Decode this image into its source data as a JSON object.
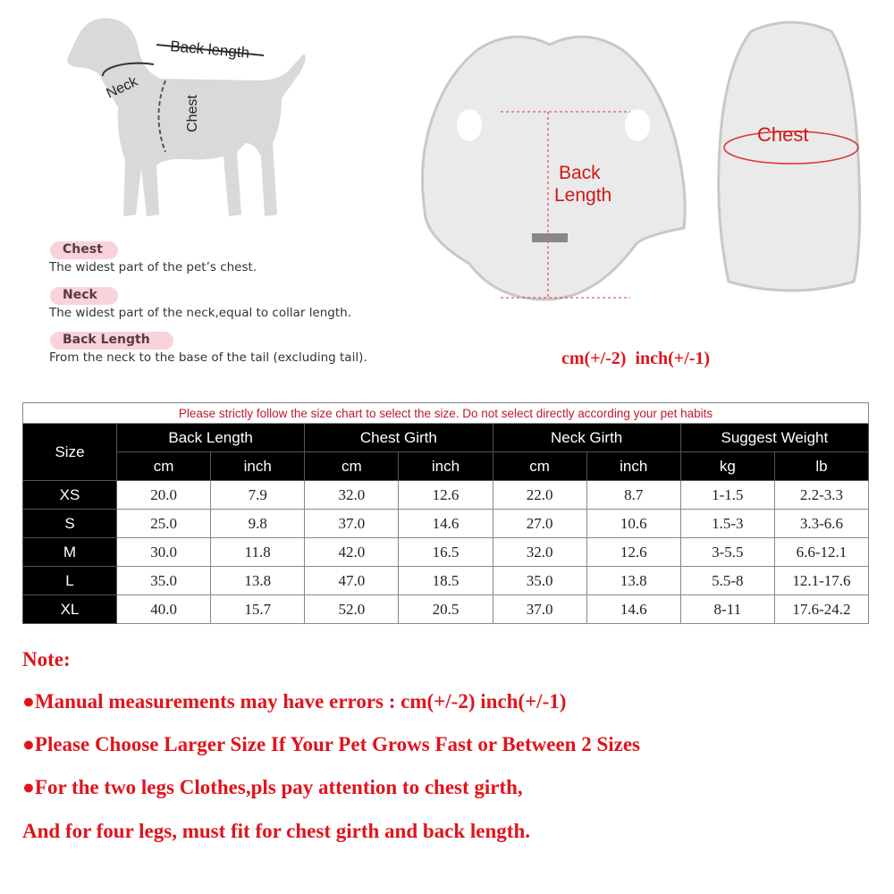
{
  "diagram": {
    "dog_labels": {
      "back_length": "Back length",
      "neck": "Neck",
      "chest": "Chest"
    },
    "garment_labels": {
      "back_length_line1": "Back",
      "back_length_line2": "Length",
      "chest": "Chest"
    },
    "tolerance": "cm(+/-2)  inch(+/-1)"
  },
  "definitions": [
    {
      "term": "Chest",
      "text": "The widest part of the pet’s chest."
    },
    {
      "term": "Neck",
      "text": "The widest part of the neck,equal to collar length."
    },
    {
      "term": "Back Length",
      "text": "From the neck to the base of the tail (excluding tail)."
    }
  ],
  "size_table": {
    "banner": "Please strictly follow the size chart to select the size. Do not select directly according your pet habits",
    "size_header": "Size",
    "groups": [
      "Back Length",
      "Chest Girth",
      "Neck Girth",
      "Suggest Weight"
    ],
    "units": [
      "cm",
      "inch",
      "cm",
      "inch",
      "cm",
      "inch",
      "kg",
      "lb"
    ],
    "rows": [
      {
        "size": "XS",
        "values": [
          "20.0",
          "7.9",
          "32.0",
          "12.6",
          "22.0",
          "8.7",
          "1-1.5",
          "2.2-3.3"
        ]
      },
      {
        "size": "S",
        "values": [
          "25.0",
          "9.8",
          "37.0",
          "14.6",
          "27.0",
          "10.6",
          "1.5-3",
          "3.3-6.6"
        ]
      },
      {
        "size": "M",
        "values": [
          "30.0",
          "11.8",
          "42.0",
          "16.5",
          "32.0",
          "12.6",
          "3-5.5",
          "6.6-12.1"
        ]
      },
      {
        "size": "L",
        "values": [
          "35.0",
          "13.8",
          "47.0",
          "18.5",
          "35.0",
          "13.8",
          "5.5-8",
          "12.1-17.6"
        ]
      },
      {
        "size": "XL",
        "values": [
          "40.0",
          "15.7",
          "52.0",
          "20.5",
          "37.0",
          "14.6",
          "8-11",
          "17.6-24.2"
        ]
      }
    ]
  },
  "notes": {
    "title": "Note:",
    "lines": [
      "●Manual measurements may have errors : cm(+/-2)  inch(+/-1)",
      "●Please Choose Larger Size If Your Pet Grows Fast or Between 2 Sizes",
      "●For the two legs Clothes,pls pay attention to chest girth,",
      "And for four legs, must fit for chest girth and back length."
    ]
  },
  "colors": {
    "accent_red": "#e0141c",
    "pill_pink": "#f9d3dc",
    "header_black": "#000000"
  }
}
